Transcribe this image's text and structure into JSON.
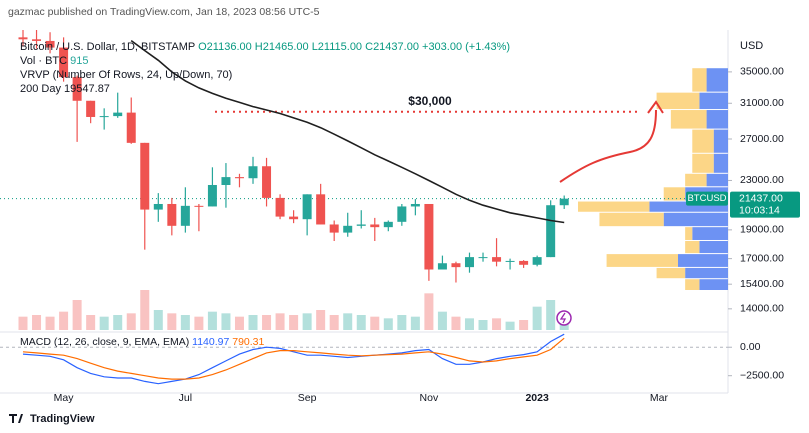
{
  "page": {
    "header": "gazmac published on TradingView.com, Jan 18, 2023 08:56 UTC-5",
    "footer": "TradingView"
  },
  "chart_data": {
    "type": "candlestick",
    "symbol": "Bitcoin / U.S. Dollar, 1D, BITSTAMP",
    "ohlc_labels": [
      "O21136.00",
      "H21465.00",
      "L21115.00",
      "C21437.00",
      "+303.00 (+1.43%)"
    ],
    "volume_label": "Vol · BTC",
    "volume_value": 915,
    "vrvp_label": "VRVP (Number Of Rows, 24, Up/Down, 70)",
    "currency": "USD",
    "log_scale": true,
    "up_color": "#26a69a",
    "down_color": "#ef5350",
    "categories": [
      null,
      null,
      null,
      "May",
      null,
      null,
      null,
      null,
      null,
      null,
      null,
      null,
      "Jul",
      null,
      null,
      null,
      null,
      null,
      null,
      null,
      null,
      "Sep",
      null,
      null,
      null,
      null,
      null,
      null,
      null,
      null,
      "Nov",
      null,
      null,
      null,
      null,
      null,
      null,
      null,
      "2023",
      null,
      null,
      null,
      null,
      null,
      null,
      null,
      null,
      "Mar"
    ],
    "open": [
      40000,
      39700,
      39450,
      38450,
      34300,
      31300,
      29400,
      29500,
      29900,
      26600,
      20550,
      21000,
      19300,
      20850,
      20800,
      22600,
      23300,
      23200,
      24300,
      21500,
      20000,
      19800,
      21800,
      19400,
      18800,
      19300,
      19400,
      19200,
      19600,
      20800,
      21000,
      16300,
      16700,
      16450,
      17100,
      17100,
      16800,
      16850,
      16600,
      17100,
      20900,
      null,
      null,
      null,
      null,
      null,
      null,
      null
    ],
    "high": [
      41500,
      42900,
      40800,
      40000,
      34500,
      31300,
      30400,
      32300,
      31700,
      26600,
      21900,
      21500,
      22400,
      21000,
      24200,
      24600,
      23600,
      25200,
      25100,
      21800,
      20500,
      21800,
      22700,
      19700,
      20300,
      20500,
      19900,
      19700,
      21000,
      21400,
      21000,
      17200,
      16800,
      17400,
      17400,
      18400,
      17000,
      16900,
      17200,
      21300,
      21700,
      null,
      null,
      null,
      null,
      null,
      null,
      null
    ],
    "low": [
      38600,
      38300,
      37600,
      33700,
      26700,
      28700,
      28000,
      29300,
      26500,
      17600,
      19600,
      18600,
      18800,
      18900,
      20800,
      20700,
      22400,
      22700,
      20800,
      19800,
      19500,
      18600,
      19400,
      18200,
      18500,
      19100,
      18200,
      18900,
      19300,
      20100,
      15600,
      16300,
      15500,
      16100,
      16800,
      16500,
      16300,
      16400,
      16500,
      17100,
      20600,
      null,
      null,
      null,
      null,
      null,
      null,
      null
    ],
    "close": [
      39700,
      39450,
      38450,
      34300,
      31300,
      29400,
      29500,
      29900,
      26600,
      20550,
      21000,
      19300,
      20850,
      20800,
      22600,
      23300,
      23200,
      24300,
      21500,
      20000,
      19800,
      21800,
      19400,
      18800,
      19300,
      19400,
      19200,
      19600,
      20800,
      21000,
      16300,
      16700,
      16450,
      17100,
      17100,
      16800,
      16850,
      16600,
      17100,
      20900,
      21437,
      null,
      null,
      null,
      null,
      null,
      null,
      null
    ],
    "volume": [
      40,
      45,
      40,
      55,
      90,
      45,
      40,
      45,
      50,
      120,
      60,
      50,
      45,
      40,
      55,
      50,
      40,
      45,
      45,
      50,
      45,
      50,
      60,
      45,
      50,
      45,
      40,
      35,
      45,
      40,
      110,
      55,
      40,
      35,
      30,
      35,
      25,
      30,
      70,
      90,
      40,
      null,
      null,
      null,
      null,
      null,
      null,
      null
    ],
    "ma_label": "200 Day",
    "ma200": {
      "color": "#1f1f1f",
      "values": [
        null,
        null,
        null,
        null,
        null,
        null,
        null,
        null,
        39500,
        38000,
        36600,
        35000,
        33800,
        32900,
        32200,
        31600,
        31100,
        30600,
        30200,
        29800,
        29300,
        28800,
        28200,
        27500,
        26800,
        26100,
        25400,
        24800,
        24200,
        23600,
        23000,
        22400,
        21800,
        21300,
        20900,
        20600,
        20300,
        20100,
        19900,
        19700,
        19547.87,
        null,
        null,
        null,
        null,
        null,
        null,
        null
      ]
    },
    "ylim": [
      12900,
      39900
    ],
    "yticks": [
      {
        "value": 14000,
        "label": "14000.00"
      },
      {
        "value": 15400,
        "label": "15400.00"
      },
      {
        "value": 17000,
        "label": "17000.00"
      },
      {
        "value": 19000,
        "label": "19000.00"
      },
      {
        "value": 23000,
        "label": "23000.00"
      },
      {
        "value": 27000,
        "label": "27000.00"
      },
      {
        "value": 31000,
        "label": "31000.00"
      },
      {
        "value": 35000,
        "label": "35000.00"
      }
    ],
    "last_price": {
      "symbol": "BTCUSD",
      "value": 21437,
      "label": "21437.00",
      "countdown": "10:03:14",
      "color": "#089981"
    },
    "annotation": {
      "text": "$30,000",
      "level": 30000,
      "color": "#e53935"
    },
    "vrvp": {
      "bins": [
        15000,
        15700,
        16400,
        17300,
        18200,
        19200,
        20300,
        21200,
        22400,
        23600,
        25500,
        28000,
        30200,
        32300,
        35500
      ],
      "up": [
        4,
        6,
        7,
        4,
        5,
        9,
        11,
        6,
        3,
        2,
        2,
        3,
        4,
        3
      ],
      "down": [
        2,
        4,
        10,
        2,
        1,
        9,
        10,
        3,
        3,
        3,
        3,
        5,
        6,
        2
      ],
      "up_color": "#5d86f2",
      "down_color": "#fcd27a"
    },
    "macd": {
      "label": "MACD (12, 26, close, 9, EMA, EMA)",
      "ylim": [
        -4020,
        1250
      ],
      "yticks": [
        {
          "value": -2500,
          "label": "−2500.00"
        },
        {
          "value": 0,
          "label": "0.00"
        }
      ],
      "series": [
        {
          "name": "MACD",
          "color": "#2962ff",
          "values": [
            -600,
            -700,
            -800,
            -1100,
            -1800,
            -2300,
            -2600,
            -2700,
            -2700,
            -3000,
            -3200,
            -3000,
            -2800,
            -2400,
            -1800,
            -1200,
            -600,
            -200,
            0,
            -100,
            -400,
            -700,
            -700,
            -800,
            -900,
            -800,
            -700,
            -600,
            -500,
            -300,
            -200,
            -1000,
            -1500,
            -1500,
            -1300,
            -1000,
            -800,
            -650,
            -400,
            500,
            1140.97,
            null,
            null,
            null,
            null,
            null,
            null,
            null
          ]
        },
        {
          "name": "Signal",
          "color": "#ff6d00",
          "values": [
            -400,
            -500,
            -600,
            -700,
            -1000,
            -1400,
            -1800,
            -2100,
            -2300,
            -2500,
            -2700,
            -2800,
            -2800,
            -2700,
            -2400,
            -2000,
            -1500,
            -1000,
            -500,
            -300,
            -300,
            -400,
            -500,
            -600,
            -700,
            -750,
            -700,
            -650,
            -600,
            -500,
            -400,
            -600,
            -900,
            -1200,
            -1300,
            -1200,
            -1000,
            -850,
            -700,
            -200,
            790.31,
            null,
            null,
            null,
            null,
            null,
            null,
            null
          ]
        }
      ]
    }
  }
}
